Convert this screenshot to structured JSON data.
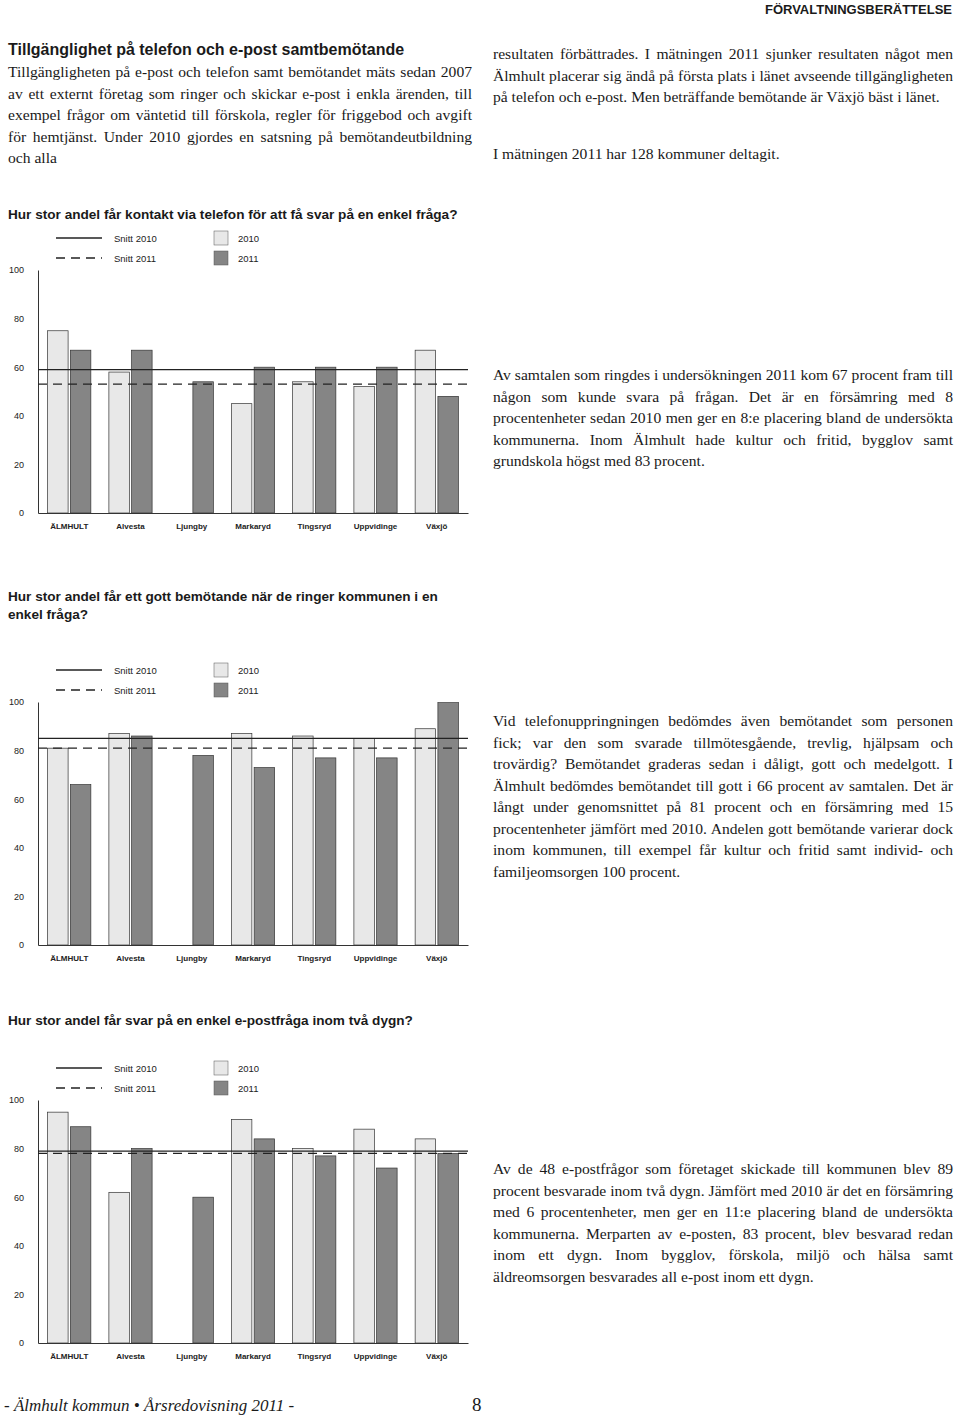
{
  "header": "FÖRVALTNINGSBERÄTTELSE",
  "section_title": "Tillgänglighet på telefon och e-post samtbemötande",
  "intro": [
    "Tillgängligheten på e-post och telefon samt bemötandet mäts sedan 2007 av ett externt företag som ringer och skickar e-post i enkla ärenden, till exempel frågor om väntetid till förskola, regler för friggebod och avgift för hemtjänst. Under 2010 gjordes en satsning på bemötandeutbildning och alla",
    "resultaten förbättrades. I mätningen 2011 sjunker resultaten något men Älmhult placerar sig ändå på första plats i länet avseende tillgängligheten på telefon och e-post. Men beträffande bemötande är Växjö bäst i länet."
  ],
  "note": "I mätningen 2011 har 128 kommuner deltagit.",
  "chart_data": [
    {
      "type": "bar",
      "title": "Hur stor andel får kontakt via telefon för att få svar på en enkel fråga?",
      "categories": [
        "ÄLMHULT",
        "Alvesta",
        "Ljungby",
        "Markaryd",
        "Tingsryd",
        "Uppvidinge",
        "Växjö"
      ],
      "series": [
        {
          "name": "2010",
          "color": "#e8e8e8",
          "values": [
            75,
            58,
            null,
            45,
            54,
            52,
            67
          ]
        },
        {
          "name": "2011",
          "color": "#858585",
          "values": [
            67,
            67,
            54,
            60,
            60,
            60,
            48
          ]
        }
      ],
      "averages": [
        {
          "name": "Snitt 2010",
          "value": 59,
          "line_style": "solid",
          "color": "#222222"
        },
        {
          "name": "Snitt 2011",
          "value": 53,
          "line_style": "dashed",
          "color": "#222222"
        }
      ],
      "ylim": [
        0,
        100
      ],
      "yticks": [
        0,
        20,
        40,
        60,
        80,
        100
      ],
      "grid": false,
      "legend": "top",
      "annotation": "Av samtalen som ringdes i undersökningen 2011 kom 67 procent fram till någon som kunde svara på frågan. Det är en försämring med 8 procentenheter sedan 2010 men ger en 8:e placering bland de undersökta kommunerna. Inom Älmhult hade kultur och fritid, bygglov samt grundskola högst med 83 procent."
    },
    {
      "type": "bar",
      "title": "Hur stor andel får ett gott bemötande när de ringer kommunen i en enkel fråga?",
      "categories": [
        "ÄLMHULT",
        "Alvesta",
        "Ljungby",
        "Markaryd",
        "Tingsryd",
        "Uppvidinge",
        "Växjö"
      ],
      "series": [
        {
          "name": "2010",
          "color": "#e8e8e8",
          "values": [
            81,
            87,
            null,
            87,
            86,
            85,
            89
          ]
        },
        {
          "name": "2011",
          "color": "#858585",
          "values": [
            66,
            86,
            78,
            73,
            77,
            77,
            100
          ]
        }
      ],
      "averages": [
        {
          "name": "Snitt 2010",
          "value": 85,
          "line_style": "solid",
          "color": "#222222"
        },
        {
          "name": "Snitt 2011",
          "value": 81,
          "line_style": "dashed",
          "color": "#222222"
        }
      ],
      "ylim": [
        0,
        100
      ],
      "yticks": [
        0,
        20,
        40,
        60,
        80,
        100
      ],
      "grid": false,
      "legend": "top",
      "annotation": "Vid telefonuppringningen bedömdes även bemötandet som personen fick; var den som svarade tillmötesgående, trevlig, hjälpsam och trovärdig? Bemötandet graderas sedan i dåligt, gott och medelgott. I Älmhult bedömdes bemötandet till gott i 66 procent av samtalen. Det är långt under genomsnittet på 81 procent och en försämring med 15 procentenheter jämfört med 2010. Andelen gott bemötande varierar dock inom kommunen, till exempel får kultur och fritid samt individ- och familjeomsorgen 100 procent."
    },
    {
      "type": "bar",
      "title": "Hur stor andel får svar på en enkel e-postfråga inom två dygn?",
      "categories": [
        "ÄLMHULT",
        "Alvesta",
        "Ljungby",
        "Markaryd",
        "Tingsryd",
        "Uppvidinge",
        "Växjö"
      ],
      "series": [
        {
          "name": "2010",
          "color": "#e8e8e8",
          "values": [
            95,
            62,
            null,
            92,
            80,
            88,
            84
          ]
        },
        {
          "name": "2011",
          "color": "#858585",
          "values": [
            89,
            80,
            60,
            84,
            77,
            72,
            78
          ]
        }
      ],
      "averages": [
        {
          "name": "Snitt 2010",
          "value": 79,
          "line_style": "solid",
          "color": "#222222"
        },
        {
          "name": "Snitt 2011",
          "value": 78,
          "line_style": "dashed",
          "color": "#222222"
        }
      ],
      "ylim": [
        0,
        100
      ],
      "yticks": [
        0,
        20,
        40,
        60,
        80,
        100
      ],
      "grid": false,
      "legend": "top",
      "annotation": "Av de 48 e-postfrågor som företaget skickade till kommunen blev 89 procent besvarade inom två dygn. Jämfört med 2010 är det en försämring med 6 procentenheter, men ger en 11:e placering bland de undersökta kommunerna. Merparten av e-posten, 83 procent, blev besvarad redan inom ett dygn. Inom bygglov, förskola, miljö och hälsa samt äldreomsorgen besvarades all e-post inom ett dygn."
    }
  ],
  "footer": {
    "text": "- Älmhult kommun • Årsredovisning 2011 -",
    "page": "8"
  }
}
